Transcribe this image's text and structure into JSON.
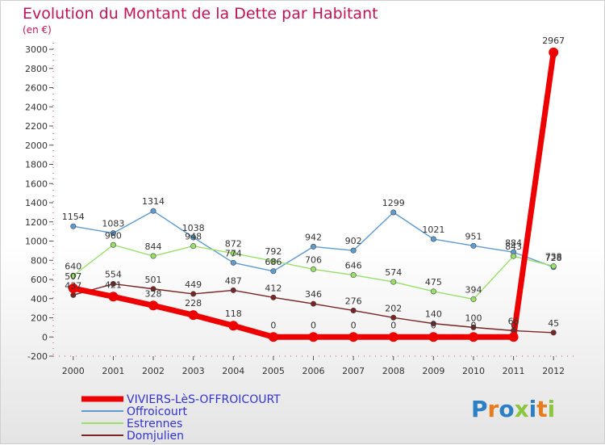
{
  "chart_data": {
    "type": "line",
    "title": "Evolution du Montant de la Dette par Habitant",
    "subtitle": "(en €)",
    "x": [
      "2000",
      "2001",
      "2002",
      "2003",
      "2004",
      "2005",
      "2006",
      "2007",
      "2008",
      "2009",
      "2010",
      "2011",
      "2012"
    ],
    "ylim": [
      -200,
      3000
    ],
    "yticks": [
      -200,
      0,
      200,
      400,
      600,
      800,
      1000,
      1200,
      1400,
      1600,
      1800,
      2000,
      2200,
      2400,
      2600,
      2800,
      3000
    ],
    "grid": false,
    "legend_position": "bottom-left",
    "series": [
      {
        "name": "VIVIERS-LèS-OFFROICOURT",
        "color": "#ee0000",
        "values": [
          507,
          421,
          328,
          228,
          118,
          0,
          0,
          0,
          0,
          0,
          0,
          0,
          2967
        ]
      },
      {
        "name": "Offroicourt",
        "color": "#5e9bd0",
        "values": [
          1154,
          1083,
          1314,
          1038,
          774,
          686,
          942,
          902,
          1299,
          1021,
          951,
          884,
          728
        ]
      },
      {
        "name": "Estrennes",
        "color": "#99e06a",
        "values": [
          640,
          960,
          844,
          948,
          872,
          792,
          706,
          646,
          574,
          475,
          394,
          843,
          738
        ]
      },
      {
        "name": "Domjulien",
        "color": "#7a2424",
        "values": [
          437,
          554,
          501,
          449,
          487,
          412,
          346,
          276,
          202,
          140,
          100,
          66,
          45
        ]
      }
    ]
  },
  "logo": {
    "letters": [
      {
        "char": "P",
        "color": "#2b7fc2"
      },
      {
        "char": "r",
        "color": "#e87b1e"
      },
      {
        "char": "o",
        "color": "#2b7fc2"
      },
      {
        "char": "x",
        "color": "#8cc63f"
      },
      {
        "char": "i",
        "color": "#2b7fc2"
      },
      {
        "char": "t",
        "color": "#e87b1e"
      },
      {
        "char": "i",
        "color": "#8cc63f"
      }
    ]
  }
}
